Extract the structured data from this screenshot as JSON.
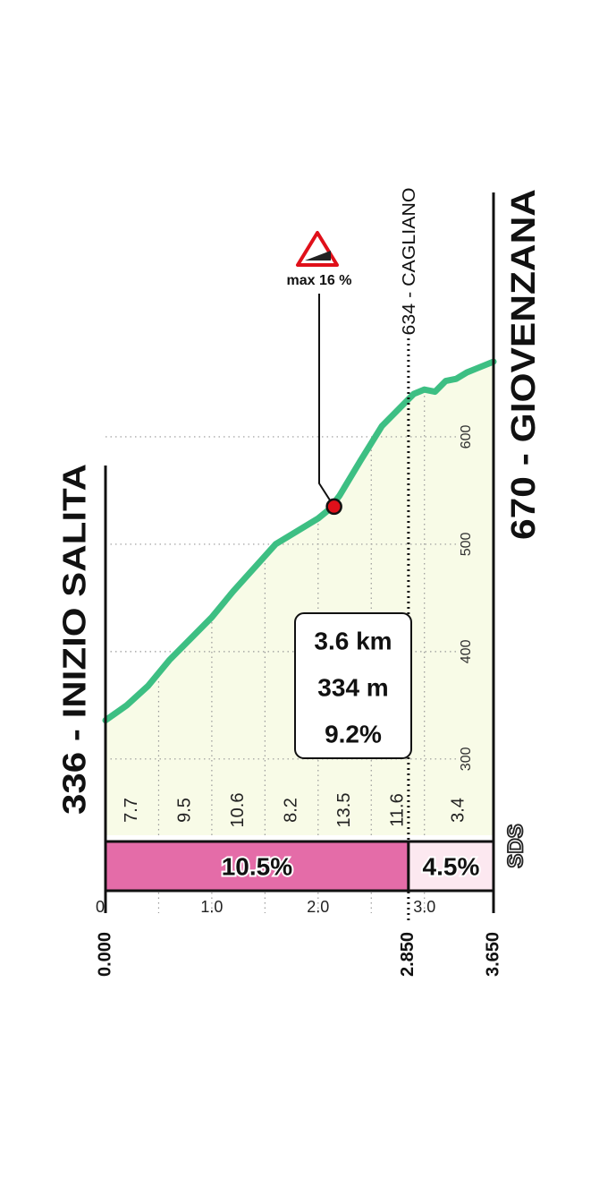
{
  "chart_data": {
    "type": "area",
    "x": [
      0,
      0.2,
      0.4,
      0.6,
      0.8,
      1.0,
      1.2,
      1.4,
      1.6,
      1.8,
      2.0,
      2.1,
      2.2,
      2.4,
      2.6,
      2.8,
      2.9,
      3.0,
      3.1,
      3.2,
      3.3,
      3.4,
      3.5,
      3.65
    ],
    "values": [
      336,
      350,
      368,
      392,
      412,
      432,
      456,
      478,
      500,
      512,
      524,
      532,
      545,
      578,
      610,
      630,
      640,
      644,
      642,
      652,
      654,
      660,
      664,
      670
    ],
    "line_color": "#3dbf83",
    "fill_color": "#f8fbe7",
    "xlim": [
      0,
      3.65
    ],
    "xticks": [
      0,
      {
        "value": 1,
        "label": "1.0"
      },
      {
        "value": 2,
        "label": "2.0"
      },
      {
        "value": 3,
        "label": "3.0"
      }
    ],
    "ylim": [
      229,
      700
    ],
    "yticks": [
      300,
      400,
      500,
      600
    ],
    "grid": true,
    "start_label": "336 - INIZIO SALITA",
    "end_label": "670 - GIOVENZANA",
    "waypoint": {
      "x": 2.85,
      "label": "634 - CAGLIANO"
    },
    "max_gradient": {
      "x": 2.15,
      "y": 535,
      "label": "max 16 %"
    },
    "summary": [
      "3.6 km",
      "334 m",
      "9.2%"
    ],
    "segment_edges": [
      0,
      0.5,
      1.0,
      1.5,
      2.0,
      2.5,
      3.0,
      3.65
    ],
    "segment_gradients": [
      7.7,
      9.5,
      10.6,
      8.2,
      13.5,
      11.6,
      3.4
    ],
    "section_bounds": [
      {
        "value": 0,
        "label": "0.000"
      },
      {
        "value": 2.85,
        "label": "2.850"
      },
      {
        "value": 3.65,
        "label": "3.650"
      }
    ],
    "sections": [
      {
        "value": 10.5,
        "label": "10.5%",
        "color": "#e46ca8"
      },
      {
        "value": 4.5,
        "label": "4.5%",
        "color": "#fce8f0"
      }
    ],
    "logo": "SDS"
  }
}
